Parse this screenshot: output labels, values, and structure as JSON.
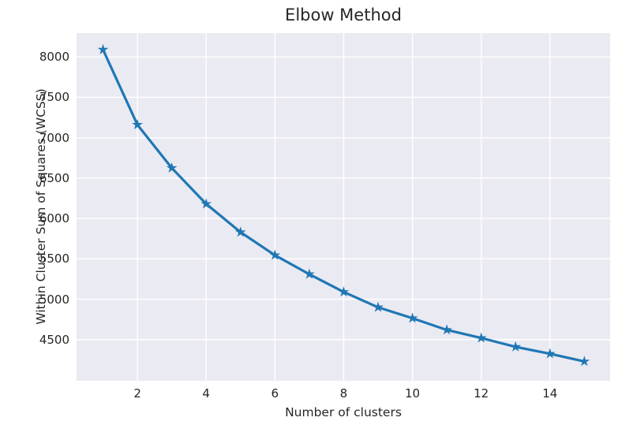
{
  "figure": {
    "background": "#ffffff"
  },
  "chart_data": {
    "type": "line",
    "title": "Elbow Method",
    "xlabel": "Number of clusters",
    "ylabel": "Within Cluster Sum of Squares (WCSS)",
    "series": [
      {
        "name": "WCSS",
        "x": [
          1,
          2,
          3,
          4,
          5,
          6,
          7,
          8,
          9,
          10,
          11,
          12,
          13,
          14,
          15
        ],
        "y": [
          8090,
          7160,
          6625,
          6180,
          5830,
          5545,
          5310,
          5090,
          4900,
          4765,
          4620,
          4520,
          4410,
          4325,
          4230
        ]
      }
    ],
    "marker": "star",
    "line_color": "#1f77b4",
    "marker_color": "#1f77b4",
    "axes_background": "#eaeaf2",
    "grid_color": "#ffffff",
    "text_color": "#262626",
    "grid": true,
    "legend": false,
    "xlim": [
      0.23,
      15.75
    ],
    "ylim": [
      3990,
      8295
    ],
    "xticks": [
      2,
      4,
      6,
      8,
      10,
      12,
      14
    ],
    "yticks": [
      4500,
      5000,
      5500,
      6000,
      6500,
      7000,
      7500,
      8000
    ],
    "xtick_labels": [
      "2",
      "4",
      "6",
      "8",
      "10",
      "12",
      "14"
    ],
    "ytick_labels": [
      "4500",
      "5000",
      "5500",
      "6000",
      "6500",
      "7000",
      "7500",
      "8000"
    ]
  }
}
